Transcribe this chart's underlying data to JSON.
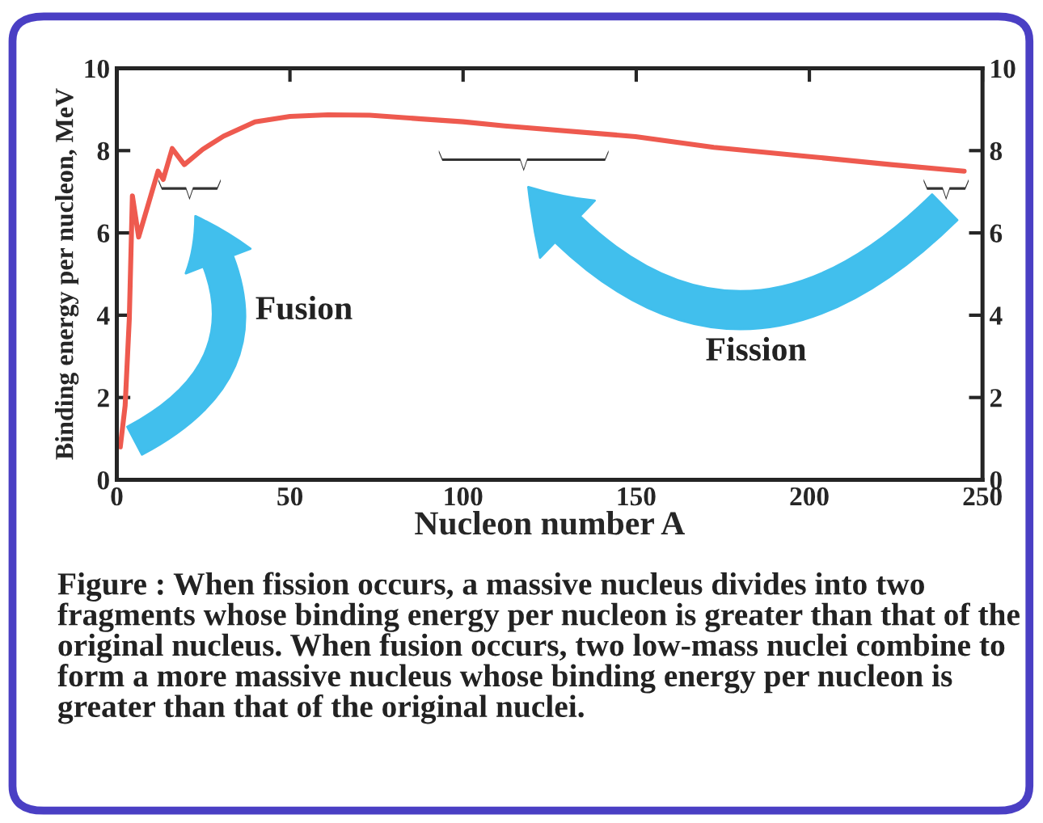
{
  "chart_data": {
    "type": "line",
    "xlabel": "Nucleon number A",
    "ylabel": "Binding energy per nucleon, MeV",
    "x": [
      1,
      2.4,
      3.6,
      4.5,
      6.3,
      11.9,
      13.4,
      16,
      19.5,
      24.8,
      30.8,
      39.9,
      50,
      61,
      73,
      88,
      100,
      112,
      149.8,
      172.4,
      199.5,
      223.6,
      244.7
    ],
    "series": [
      {
        "color": "#ee5a4f",
        "values": [
          0.8,
          1.8,
          3.9,
          6.9,
          5.9,
          7.5,
          7.3,
          8.05,
          7.66,
          8.03,
          8.35,
          8.7,
          8.83,
          8.87,
          8.86,
          8.77,
          8.7,
          8.6,
          8.34,
          8.08,
          7.86,
          7.66,
          7.5
        ]
      }
    ],
    "xlim": [
      0,
      250
    ],
    "xticks": [
      0,
      50,
      100,
      150,
      200,
      250
    ],
    "ylim": [
      0,
      10
    ],
    "yticks": [
      0,
      2,
      4,
      6,
      8,
      10
    ],
    "y2lim": [
      0,
      10
    ],
    "y2ticks": [
      0,
      2,
      4,
      6,
      8,
      10
    ],
    "grid": false,
    "legend": false,
    "marker": "none",
    "line_style": "solid",
    "annotations": [
      "Fusion",
      "Fission",
      "Figure : When fission occurs, a massive nucleus divides into two fragments whose binding energy per nucleon is greater than that of the original nucleus. When fusion occurs, two low-mass nuclei combine to form a more massive nucleus whose binding energy per nucleon is greater than that of the original nuclei."
    ]
  }
}
